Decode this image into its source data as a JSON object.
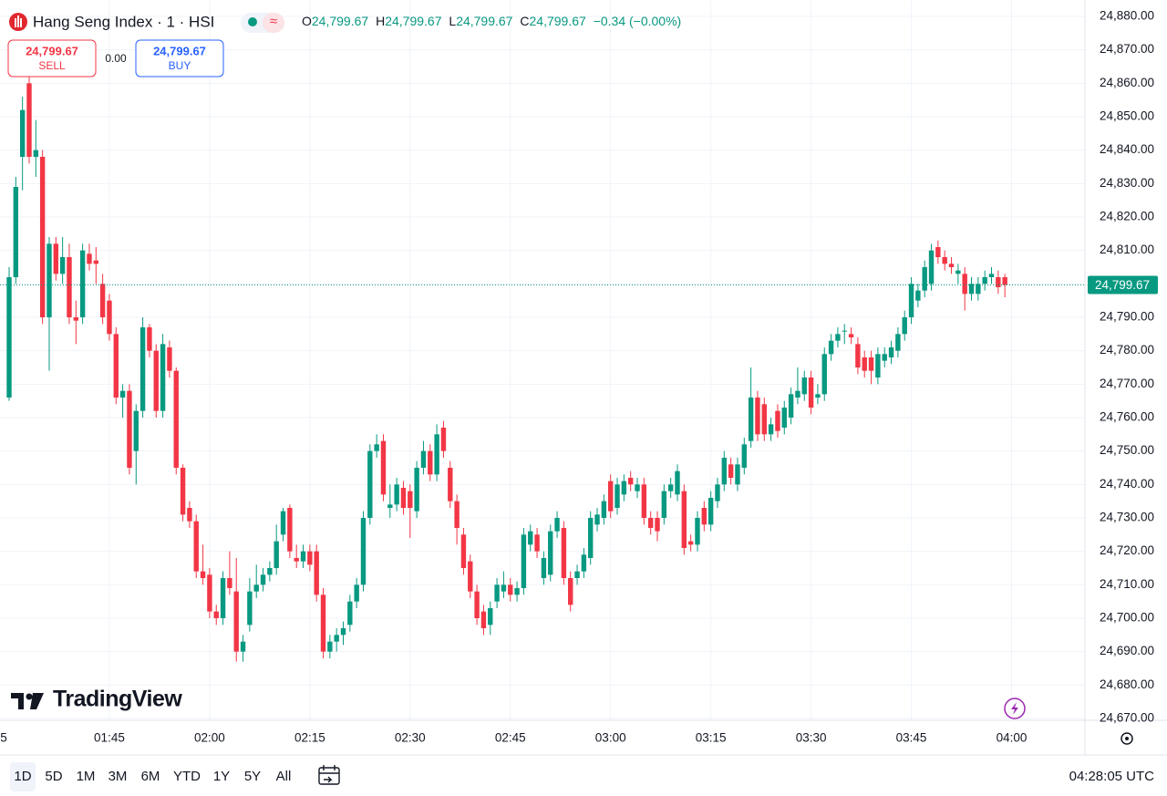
{
  "chart_data": {
    "type": "candlestick",
    "title": "Hang Seng Index · 1 · HSI",
    "legend": [
      {
        "key": "O",
        "value": "24,799.67"
      },
      {
        "key": "H",
        "value": "24,799.67"
      },
      {
        "key": "L",
        "value": "24,799.67"
      },
      {
        "key": "C",
        "value": "24,799.67"
      }
    ],
    "change": "−0.34 (−0.00%)",
    "sell": {
      "price": "24,799.67",
      "label": "SELL"
    },
    "spread": "0.00",
    "buy": {
      "price": "24,799.67",
      "label": "BUY"
    },
    "brand": "TradingView",
    "up_color": "#089981",
    "down_color": "#f23645",
    "ylim": [
      24670,
      24880
    ],
    "yticks": [
      {
        "value": 24880,
        "label": "24,880.00"
      },
      {
        "value": 24870,
        "label": "24,870.00"
      },
      {
        "value": 24860,
        "label": "24,860.00"
      },
      {
        "value": 24850,
        "label": "24,850.00"
      },
      {
        "value": 24840,
        "label": "24,840.00"
      },
      {
        "value": 24830,
        "label": "24,830.00"
      },
      {
        "value": 24820,
        "label": "24,820.00"
      },
      {
        "value": 24810,
        "label": "24,810.00"
      },
      {
        "value": 24800,
        "label": "24,800.00"
      },
      {
        "value": 24790,
        "label": "24,790.00"
      },
      {
        "value": 24780,
        "label": "24,780.00"
      },
      {
        "value": 24770,
        "label": "24,770.00"
      },
      {
        "value": 24760,
        "label": "24,760.00"
      },
      {
        "value": 24750,
        "label": "24,750.00"
      },
      {
        "value": 24740,
        "label": "24,740.00"
      },
      {
        "value": 24730,
        "label": "24,730.00"
      },
      {
        "value": 24720,
        "label": "24,720.00"
      },
      {
        "value": 24710,
        "label": "24,710.00"
      },
      {
        "value": 24700,
        "label": "24,700.00"
      },
      {
        "value": 24690,
        "label": "24,690.00"
      },
      {
        "value": 24680,
        "label": "24,680.00"
      },
      {
        "value": 24670,
        "label": "24,670.00"
      }
    ],
    "price_label": {
      "value": 24799.67,
      "label": "24,799.67"
    },
    "x_edge_label": "5",
    "xticks": [
      "01:45",
      "02:00",
      "02:15",
      "02:30",
      "02:45",
      "03:00",
      "03:15",
      "03:30",
      "03:45",
      "04:00"
    ],
    "ranges": [
      "1D",
      "5D",
      "1M",
      "3M",
      "6M",
      "YTD",
      "1Y",
      "5Y",
      "All"
    ],
    "clock": "04:28:05 UTC",
    "ohlc": [
      [
        24766,
        24805,
        24765,
        24802
      ],
      [
        24802,
        24832,
        24800,
        24829
      ],
      [
        24838,
        24856,
        24828,
        24852
      ],
      [
        24860,
        24862,
        24836,
        24838
      ],
      [
        24838,
        24849,
        24832,
        24840
      ],
      [
        24838,
        24840,
        24788,
        24790
      ],
      [
        24790,
        24814,
        24774,
        24812
      ],
      [
        24812,
        24814,
        24801,
        24803
      ],
      [
        24803,
        24814,
        24800,
        24808
      ],
      [
        24808,
        24812,
        24788,
        24790
      ],
      [
        24790,
        24795,
        24782,
        24789
      ],
      [
        24790,
        24812,
        24788,
        24810
      ],
      [
        24809,
        24812,
        24804,
        24806
      ],
      [
        24807,
        24811,
        24800,
        24806
      ],
      [
        24800,
        24803,
        24788,
        24790
      ],
      [
        24795,
        24797,
        24783,
        24785
      ],
      [
        24785,
        24787,
        24764,
        24766
      ],
      [
        24766,
        24770,
        24760,
        24768
      ],
      [
        24768,
        24770,
        24743,
        24745
      ],
      [
        24750,
        24764,
        24740,
        24762
      ],
      [
        24762,
        24790,
        24760,
        24787
      ],
      [
        24787,
        24788,
        24778,
        24780
      ],
      [
        24780,
        24782,
        24760,
        24762
      ],
      [
        24762,
        24785,
        24760,
        24782
      ],
      [
        24781,
        24783,
        24772,
        24774
      ],
      [
        24774,
        24775,
        24743,
        24745
      ],
      [
        24745,
        24746,
        24729,
        24731
      ],
      [
        24733,
        24735,
        24727,
        24729
      ],
      [
        24729,
        24731,
        24712,
        24714
      ],
      [
        24714,
        24722,
        24710,
        24712
      ],
      [
        24713,
        24715,
        24700,
        24702
      ],
      [
        24702,
        24704,
        24698,
        24700
      ],
      [
        24700,
        24714,
        24698,
        24712
      ],
      [
        24712,
        24720,
        24707,
        24709
      ],
      [
        24708,
        24718,
        24687,
        24690
      ],
      [
        24690,
        24695,
        24687,
        24693
      ],
      [
        24698,
        24712,
        24696,
        24708
      ],
      [
        24708,
        24716,
        24706,
        24710
      ],
      [
        24710,
        24715,
        24708,
        24713
      ],
      [
        24713,
        24717,
        24711,
        24715
      ],
      [
        24715,
        24728,
        24713,
        24723
      ],
      [
        24725,
        24733,
        24723,
        24732
      ],
      [
        24733,
        24734,
        24718,
        24720
      ],
      [
        24718,
        24722,
        24715,
        24717
      ],
      [
        24717,
        24722,
        24715,
        24720
      ],
      [
        24720,
        24722,
        24714,
        24716
      ],
      [
        24720,
        24722,
        24705,
        24707
      ],
      [
        24707,
        24709,
        24688,
        24690
      ],
      [
        24690,
        24695,
        24688,
        24693
      ],
      [
        24693,
        24697,
        24690,
        24695
      ],
      [
        24695,
        24699,
        24692,
        24697
      ],
      [
        24698,
        24707,
        24696,
        24705
      ],
      [
        24705,
        24712,
        24703,
        24710
      ],
      [
        24710,
        24732,
        24708,
        24730
      ],
      [
        24730,
        24752,
        24728,
        24750
      ],
      [
        24750,
        24755,
        24748,
        24752
      ],
      [
        24753,
        24755,
        24735,
        24737
      ],
      [
        24733,
        24740,
        24730,
        24734
      ],
      [
        24734,
        24742,
        24732,
        24740
      ],
      [
        24739,
        24741,
        24731,
        24733
      ],
      [
        24738,
        24740,
        24724,
        24733
      ],
      [
        24732,
        24747,
        24730,
        24745
      ],
      [
        24745,
        24753,
        24743,
        24750
      ],
      [
        24750,
        24752,
        24741,
        24743
      ],
      [
        24743,
        24758,
        24741,
        24755
      ],
      [
        24757,
        24759,
        24748,
        24750
      ],
      [
        24745,
        24747,
        24733,
        24735
      ],
      [
        24735,
        24737,
        24722,
        24727
      ],
      [
        24725,
        24727,
        24713,
        24715
      ],
      [
        24717,
        24719,
        24706,
        24708
      ],
      [
        24708,
        24710,
        24698,
        24700
      ],
      [
        24702,
        24704,
        24695,
        24697
      ],
      [
        24698,
        24705,
        24695,
        24703
      ],
      [
        24705,
        24712,
        24703,
        24710
      ],
      [
        24708,
        24714,
        24706,
        24710
      ],
      [
        24710,
        24712,
        24705,
        24707
      ],
      [
        24707,
        24711,
        24705,
        24709
      ],
      [
        24709,
        24727,
        24707,
        24725
      ],
      [
        24722,
        24728,
        24720,
        24726
      ],
      [
        24725,
        24727,
        24718,
        24720
      ],
      [
        24712,
        24720,
        24710,
        24718
      ],
      [
        24713,
        24728,
        24711,
        24726
      ],
      [
        24726,
        24732,
        24724,
        24730
      ],
      [
        24727,
        24729,
        24710,
        24712
      ],
      [
        24712,
        24714,
        24702,
        24704
      ],
      [
        24712,
        24716,
        24710,
        24714
      ],
      [
        24714,
        24721,
        24712,
        24719
      ],
      [
        24718,
        24732,
        24716,
        24730
      ],
      [
        24728,
        24733,
        24726,
        24731
      ],
      [
        24730,
        24737,
        24728,
        24735
      ],
      [
        24741,
        24743,
        24730,
        24732
      ],
      [
        24733,
        24742,
        24731,
        24740
      ],
      [
        24737,
        24743,
        24735,
        24741
      ],
      [
        24742,
        24744,
        24738,
        24740
      ],
      [
        24738,
        24742,
        24736,
        24740
      ],
      [
        24740,
        24742,
        24728,
        24730
      ],
      [
        24730,
        24732,
        24725,
        24727
      ],
      [
        24730,
        24732,
        24723,
        24726
      ],
      [
        24730,
        24740,
        24728,
        24738
      ],
      [
        24738,
        24742,
        24736,
        24740
      ],
      [
        24737,
        24746,
        24735,
        24744
      ],
      [
        24738,
        24740,
        24719,
        24721
      ],
      [
        24723,
        24725,
        24720,
        24722
      ],
      [
        24722,
        24732,
        24720,
        24730
      ],
      [
        24733,
        24735,
        24726,
        24728
      ],
      [
        24728,
        24738,
        24726,
        24736
      ],
      [
        24735,
        24742,
        24733,
        24740
      ],
      [
        24740,
        24750,
        24738,
        24748
      ],
      [
        24746,
        24748,
        24740,
        24742
      ],
      [
        24740,
        24748,
        24738,
        24746
      ],
      [
        24745,
        24754,
        24743,
        24752
      ],
      [
        24753,
        24775,
        24751,
        24766
      ],
      [
        24766,
        24768,
        24753,
        24755
      ],
      [
        24764,
        24766,
        24753,
        24755
      ],
      [
        24755,
        24760,
        24753,
        24758
      ],
      [
        24762,
        24764,
        24754,
        24756
      ],
      [
        24757,
        24765,
        24755,
        24763
      ],
      [
        24760,
        24769,
        24758,
        24767
      ],
      [
        24766,
        24775,
        24764,
        24768
      ],
      [
        24767,
        24774,
        24765,
        24772
      ],
      [
        24772,
        24774,
        24761,
        24763
      ],
      [
        24766,
        24770,
        24764,
        24767
      ],
      [
        24767,
        24781,
        24765,
        24779
      ],
      [
        24779,
        24785,
        24777,
        24783
      ],
      [
        24783,
        24787,
        24781,
        24785
      ],
      [
        24786,
        24788,
        24782,
        24786
      ],
      [
        24785,
        24787,
        24782,
        24784
      ],
      [
        24782,
        24784,
        24773,
        24775
      ],
      [
        24778,
        24780,
        24772,
        24774
      ],
      [
        24778,
        24780,
        24770,
        24774
      ],
      [
        24772,
        24781,
        24770,
        24779
      ],
      [
        24777,
        24781,
        24775,
        24779
      ],
      [
        24778,
        24783,
        24776,
        24781
      ],
      [
        24780,
        24787,
        24778,
        24785
      ],
      [
        24785,
        24792,
        24783,
        24790
      ],
      [
        24790,
        24802,
        24788,
        24800
      ],
      [
        24795,
        24800,
        24793,
        24798
      ],
      [
        24798,
        24807,
        24796,
        24805
      ],
      [
        24800,
        24812,
        24798,
        24810
      ],
      [
        24811,
        24813,
        24806,
        24808
      ],
      [
        24808,
        24810,
        24804,
        24806
      ],
      [
        24806,
        24808,
        24803,
        24805
      ],
      [
        24803,
        24806,
        24800,
        24804
      ],
      [
        24803,
        24805,
        24792,
        24797
      ],
      [
        24797,
        24802,
        24795,
        24800
      ],
      [
        24797,
        24802,
        24795,
        24800
      ],
      [
        24800,
        24804,
        24798,
        24802
      ],
      [
        24802,
        24805,
        24800,
        24803
      ],
      [
        24802,
        24804,
        24797,
        24799
      ],
      [
        24802,
        24803,
        24796,
        24799.67
      ]
    ]
  }
}
